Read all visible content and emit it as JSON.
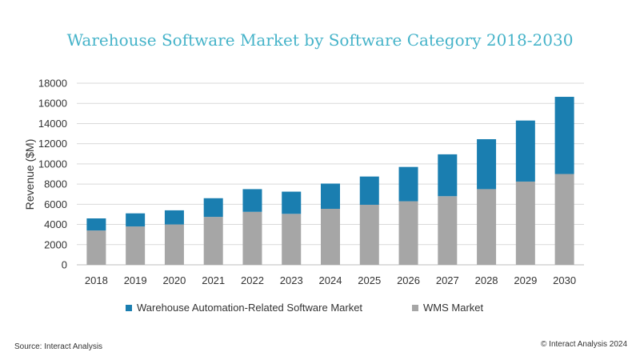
{
  "chart_data": {
    "type": "bar",
    "stacked": true,
    "title": "Warehouse Software Market by Software Category 2018-2030",
    "ylabel": "Revenue ($M)",
    "xlabel": "",
    "ylim": [
      0,
      18000
    ],
    "yticks": [
      0,
      2000,
      4000,
      6000,
      8000,
      10000,
      12000,
      14000,
      16000,
      18000
    ],
    "grid": true,
    "legend_position": "bottom",
    "categories": [
      "2018",
      "2019",
      "2020",
      "2021",
      "2022",
      "2023",
      "2024",
      "2025",
      "2026",
      "2027",
      "2028",
      "2029",
      "2030"
    ],
    "series": [
      {
        "name": "WMS Market",
        "color": "#a6a6a6",
        "values": [
          3400,
          3800,
          4000,
          4750,
          5250,
          5050,
          5550,
          5950,
          6300,
          6800,
          7500,
          8250,
          9000
        ]
      },
      {
        "name": "Warehouse Automation-Related Software Market",
        "color": "#1a7eb0",
        "values": [
          1200,
          1300,
          1400,
          1850,
          2250,
          2200,
          2500,
          2800,
          3400,
          4150,
          4950,
          6050,
          7650
        ]
      }
    ]
  },
  "legend": [
    {
      "label": "Warehouse Automation-Related Software Market",
      "color": "#1a7eb0"
    },
    {
      "label": "WMS Market",
      "color": "#a6a6a6"
    }
  ],
  "footer": {
    "source": "Source: Interact Analysis",
    "copyright": "© Interact Analysis 2024"
  }
}
